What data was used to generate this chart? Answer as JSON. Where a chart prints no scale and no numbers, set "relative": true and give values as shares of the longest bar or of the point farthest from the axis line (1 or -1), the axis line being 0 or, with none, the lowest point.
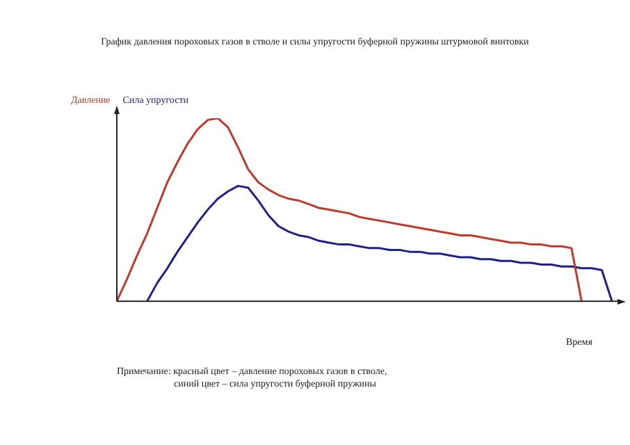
{
  "chart_data": {
    "type": "line",
    "relative": true,
    "title": "График давления пороховых газов в стволе и силы упругости буферной пружины штурмовой винтовки",
    "xlabel": "Время",
    "annotations": [
      "Примечание: красный цвет – давление пороховых газов в стволе,",
      "синий цвет – сила упругости буферной пружины"
    ],
    "categories": [
      null,
      null,
      null,
      null,
      null,
      null,
      null,
      null,
      null,
      null,
      null,
      null,
      null,
      null,
      null,
      null,
      null,
      null,
      null,
      null,
      null,
      null,
      null,
      null,
      null,
      null,
      null,
      null,
      null,
      null,
      null,
      null,
      null,
      null,
      null,
      null,
      null,
      null,
      null,
      null,
      null,
      null,
      null,
      null,
      null,
      null,
      null,
      null,
      null,
      null
    ],
    "marker": "none",
    "line_style": "solid",
    "series": [
      {
        "name": "Давление",
        "color": "#c0392b",
        "values": [
          0,
          0.12,
          0.25,
          0.37,
          0.51,
          0.65,
          0.76,
          0.86,
          0.94,
          0.99,
          1.0,
          0.95,
          0.84,
          0.72,
          0.65,
          0.61,
          0.58,
          0.56,
          0.55,
          0.53,
          0.51,
          0.5,
          0.49,
          0.48,
          0.46,
          0.45,
          0.44,
          0.43,
          0.42,
          0.41,
          0.4,
          0.39,
          0.38,
          0.37,
          0.36,
          0.36,
          0.35,
          0.34,
          0.33,
          0.32,
          0.32,
          0.31,
          0.31,
          0.3,
          0.3,
          0.29,
          0,
          null,
          null,
          null
        ]
      },
      {
        "name": "Сила упругости",
        "color": "#1f1f8f",
        "values": [
          null,
          null,
          null,
          0,
          0.1,
          0.18,
          0.27,
          0.35,
          0.43,
          0.5,
          0.56,
          0.6,
          0.63,
          0.62,
          0.55,
          0.47,
          0.41,
          0.38,
          0.36,
          0.35,
          0.33,
          0.32,
          0.31,
          0.31,
          0.3,
          0.29,
          0.29,
          0.28,
          0.28,
          0.27,
          0.27,
          0.26,
          0.26,
          0.25,
          0.24,
          0.24,
          0.23,
          0.23,
          0.22,
          0.22,
          0.21,
          0.21,
          0.2,
          0.2,
          0.19,
          0.19,
          0.18,
          0.18,
          0.17,
          0
        ]
      }
    ]
  }
}
